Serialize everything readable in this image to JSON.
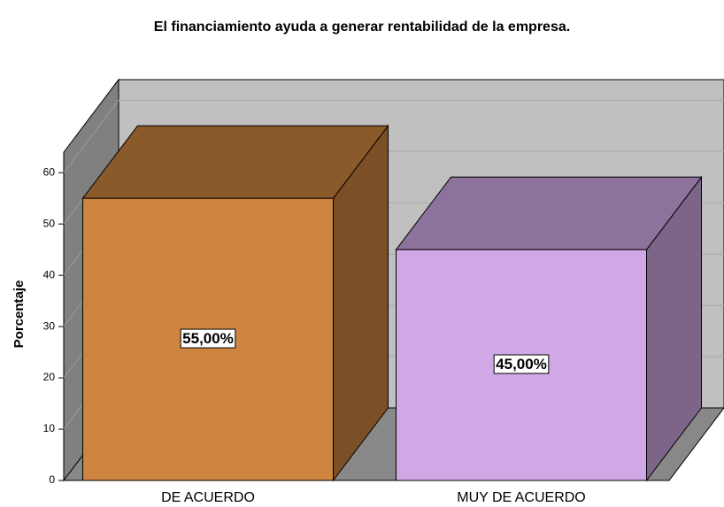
{
  "chart_data": {
    "type": "bar3d",
    "title": "El financiamiento ayuda a generar rentabilidad de la empresa.",
    "y_label": "Porcentaje",
    "categories": [
      "DE ACUERDO",
      "MUY DE ACUERDO"
    ],
    "values": [
      55,
      45
    ],
    "value_labels": [
      "55,00%",
      "45,00%"
    ],
    "colors": [
      "#cd853f",
      "#d0a8e6"
    ],
    "ylim": [
      0,
      64
    ],
    "yticks": [
      0,
      10,
      20,
      30,
      40,
      50,
      60
    ],
    "grid": true
  }
}
